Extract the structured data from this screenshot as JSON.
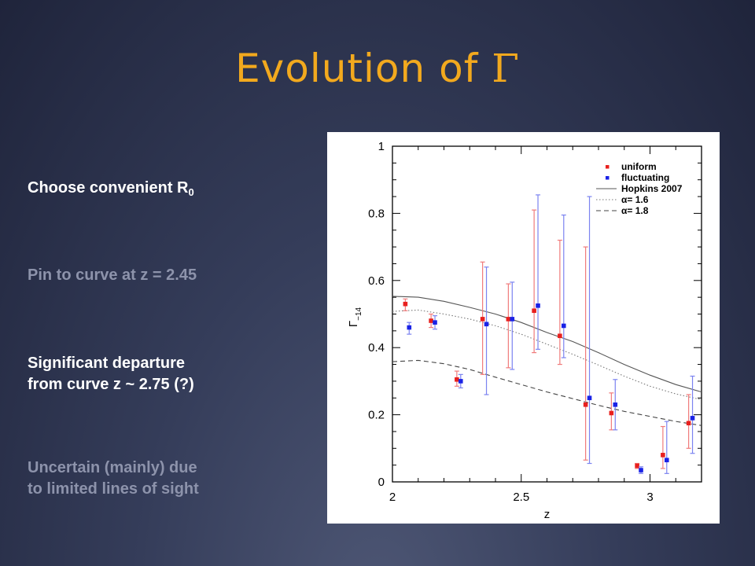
{
  "slide": {
    "title_text": "Evolution of ",
    "title_symbol": "Γ",
    "bullets": [
      {
        "text": "Choose convenient R",
        "subscript": "0",
        "state": "bright"
      },
      {
        "text": "Pin to curve at z = 2.45",
        "state": "dim"
      },
      {
        "line1": "Significant departure",
        "line2": "from curve z ~ 2.75 (?)",
        "state": "bright"
      },
      {
        "line1": "Uncertain (mainly) due",
        "line2": "to limited lines of sight",
        "state": "dim"
      }
    ]
  },
  "colors": {
    "title": "#f2a91e",
    "uniform": "#e8201e",
    "fluctuating": "#1a22e6",
    "error_uniform": "#f07b7b",
    "error_fluctuating": "#7b83f0"
  },
  "chart_data": {
    "type": "scatter",
    "xlabel": "z",
    "ylabel": "Γ",
    "ylabel_sub": "−14",
    "xlim": [
      2.0,
      3.2
    ],
    "ylim": [
      0,
      1.0
    ],
    "x_ticks": [
      "2",
      "2.5",
      "3"
    ],
    "y_ticks": [
      "0",
      "0.2",
      "0.4",
      "0.6",
      "0.8",
      "1"
    ],
    "legend_position": "top-right",
    "legend": [
      {
        "label": "uniform",
        "style": "red-point"
      },
      {
        "label": "fluctuating",
        "style": "blue-point"
      },
      {
        "label": "Hopkins 2007",
        "style": "solid"
      },
      {
        "label": "α=  1.6",
        "style": "dotted"
      },
      {
        "label": "α=  1.8",
        "style": "dashed"
      }
    ],
    "series": [
      {
        "name": "uniform",
        "points": [
          {
            "x": 2.05,
            "y": 0.53,
            "lo": 0.51,
            "hi": 0.545
          },
          {
            "x": 2.15,
            "y": 0.48,
            "lo": 0.46,
            "hi": 0.5
          },
          {
            "x": 2.25,
            "y": 0.305,
            "lo": 0.285,
            "hi": 0.33
          },
          {
            "x": 2.35,
            "y": 0.485,
            "lo": 0.32,
            "hi": 0.655
          },
          {
            "x": 2.45,
            "y": 0.485,
            "lo": 0.34,
            "hi": 0.59
          },
          {
            "x": 2.55,
            "y": 0.51,
            "lo": 0.385,
            "hi": 0.81
          },
          {
            "x": 2.65,
            "y": 0.435,
            "lo": 0.35,
            "hi": 0.72
          },
          {
            "x": 2.75,
            "y": 0.23,
            "lo": 0.065,
            "hi": 0.7
          },
          {
            "x": 2.85,
            "y": 0.205,
            "lo": 0.155,
            "hi": 0.265
          },
          {
            "x": 2.95,
            "y": 0.048,
            "lo": 0.04,
            "hi": 0.055
          },
          {
            "x": 3.05,
            "y": 0.08,
            "lo": 0.04,
            "hi": 0.165
          },
          {
            "x": 3.15,
            "y": 0.175,
            "lo": 0.1,
            "hi": 0.26
          }
        ]
      },
      {
        "name": "fluctuating",
        "points": [
          {
            "x": 2.065,
            "y": 0.46,
            "lo": 0.44,
            "hi": 0.475
          },
          {
            "x": 2.165,
            "y": 0.475,
            "lo": 0.455,
            "hi": 0.495
          },
          {
            "x": 2.265,
            "y": 0.3,
            "lo": 0.28,
            "hi": 0.32
          },
          {
            "x": 2.365,
            "y": 0.47,
            "lo": 0.26,
            "hi": 0.64
          },
          {
            "x": 2.465,
            "y": 0.485,
            "lo": 0.335,
            "hi": 0.595
          },
          {
            "x": 2.565,
            "y": 0.525,
            "lo": 0.395,
            "hi": 0.855
          },
          {
            "x": 2.665,
            "y": 0.465,
            "lo": 0.37,
            "hi": 0.795
          },
          {
            "x": 2.765,
            "y": 0.25,
            "lo": 0.055,
            "hi": 0.85
          },
          {
            "x": 2.865,
            "y": 0.23,
            "lo": 0.155,
            "hi": 0.305
          },
          {
            "x": 2.965,
            "y": 0.035,
            "lo": 0.025,
            "hi": 0.045
          },
          {
            "x": 3.065,
            "y": 0.065,
            "lo": 0.025,
            "hi": 0.18
          },
          {
            "x": 3.165,
            "y": 0.19,
            "lo": 0.085,
            "hi": 0.315
          }
        ]
      }
    ],
    "curves": [
      {
        "name": "Hopkins 2007",
        "style": "solid",
        "points": [
          [
            2.0,
            0.553
          ],
          [
            2.1,
            0.55
          ],
          [
            2.2,
            0.538
          ],
          [
            2.3,
            0.52
          ],
          [
            2.4,
            0.5
          ],
          [
            2.5,
            0.475
          ],
          [
            2.6,
            0.445
          ],
          [
            2.7,
            0.418
          ],
          [
            2.8,
            0.385
          ],
          [
            2.9,
            0.35
          ],
          [
            3.0,
            0.318
          ],
          [
            3.1,
            0.29
          ],
          [
            3.2,
            0.268
          ]
        ]
      },
      {
        "name": "α=  1.6",
        "style": "dotted",
        "points": [
          [
            2.0,
            0.508
          ],
          [
            2.1,
            0.512
          ],
          [
            2.2,
            0.5
          ],
          [
            2.3,
            0.485
          ],
          [
            2.4,
            0.465
          ],
          [
            2.5,
            0.44
          ],
          [
            2.6,
            0.41
          ],
          [
            2.7,
            0.38
          ],
          [
            2.8,
            0.348
          ],
          [
            2.9,
            0.315
          ],
          [
            3.0,
            0.285
          ],
          [
            3.1,
            0.262
          ],
          [
            3.2,
            0.245
          ]
        ]
      },
      {
        "name": "α=  1.8",
        "style": "dashed",
        "points": [
          [
            2.0,
            0.358
          ],
          [
            2.1,
            0.362
          ],
          [
            2.2,
            0.352
          ],
          [
            2.3,
            0.335
          ],
          [
            2.4,
            0.312
          ],
          [
            2.5,
            0.29
          ],
          [
            2.6,
            0.268
          ],
          [
            2.7,
            0.248
          ],
          [
            2.8,
            0.228
          ],
          [
            2.9,
            0.21
          ],
          [
            3.0,
            0.195
          ],
          [
            3.1,
            0.18
          ],
          [
            3.2,
            0.168
          ]
        ]
      }
    ]
  }
}
